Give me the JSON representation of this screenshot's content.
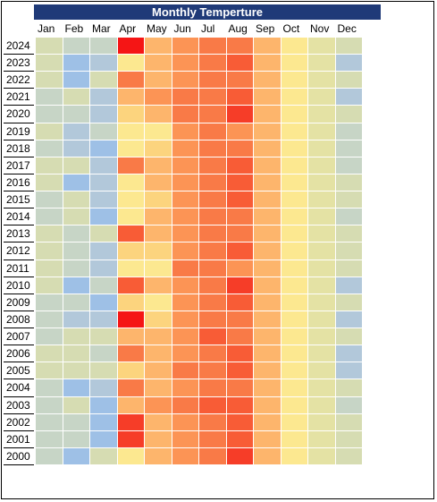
{
  "sheet": {
    "title": "Monthly Temperture",
    "months": [
      "Jan",
      "Feb",
      "Mar",
      "Apr",
      "May",
      "Jun",
      "Jul",
      "Aug",
      "Sep",
      "Oct",
      "Nov",
      "Dec"
    ],
    "years": [
      "2024",
      "2023",
      "2022",
      "2021",
      "2020",
      "2019",
      "2018",
      "2017",
      "2016",
      "2015",
      "2014",
      "2013",
      "2012",
      "2011",
      "2010",
      "2009",
      "2008",
      "2007",
      "2006",
      "2005",
      "2004",
      "2003",
      "2002",
      "2001",
      "2000"
    ],
    "colors": {
      "title_bg": "#1f3a78",
      "scale": [
        "#9ec0e6",
        "#b2c8da",
        "#c7d5c6",
        "#d6dcb2",
        "#e4e2a4",
        "#fce890",
        "#fcd47e",
        "#fdb56c",
        "#fc9455",
        "#f97a47",
        "#f85c36",
        "#f63d28",
        "#f51515"
      ]
    },
    "matrix": [
      [
        3,
        2,
        2,
        12,
        7,
        8,
        9,
        9,
        7,
        5,
        4,
        3
      ],
      [
        3,
        0,
        1,
        5,
        7,
        8,
        9,
        10,
        7,
        5,
        4,
        1
      ],
      [
        3,
        0,
        3,
        9,
        7,
        8,
        9,
        9,
        7,
        5,
        4,
        3
      ],
      [
        2,
        3,
        1,
        7,
        8,
        9,
        9,
        10,
        7,
        5,
        4,
        1
      ],
      [
        2,
        2,
        1,
        6,
        7,
        9,
        9,
        11,
        7,
        5,
        4,
        3
      ],
      [
        3,
        1,
        2,
        5,
        5,
        8,
        9,
        8,
        7,
        5,
        4,
        2
      ],
      [
        2,
        1,
        0,
        5,
        6,
        8,
        9,
        9,
        7,
        5,
        4,
        2
      ],
      [
        3,
        3,
        1,
        9,
        7,
        8,
        9,
        10,
        7,
        5,
        4,
        2
      ],
      [
        3,
        0,
        1,
        5,
        7,
        8,
        9,
        10,
        7,
        5,
        4,
        3
      ],
      [
        2,
        3,
        1,
        5,
        6,
        8,
        9,
        10,
        7,
        5,
        4,
        3
      ],
      [
        2,
        3,
        0,
        5,
        7,
        8,
        9,
        9,
        7,
        5,
        4,
        2
      ],
      [
        3,
        2,
        3,
        10,
        7,
        8,
        9,
        9,
        7,
        5,
        4,
        3
      ],
      [
        3,
        2,
        1,
        6,
        6,
        8,
        9,
        10,
        7,
        5,
        4,
        3
      ],
      [
        3,
        2,
        1,
        5,
        5,
        9,
        9,
        8,
        7,
        5,
        4,
        3
      ],
      [
        3,
        0,
        2,
        10,
        7,
        8,
        9,
        11,
        7,
        5,
        4,
        1
      ],
      [
        2,
        2,
        0,
        6,
        5,
        8,
        9,
        10,
        7,
        5,
        4,
        3
      ],
      [
        2,
        1,
        1,
        12,
        6,
        8,
        9,
        9,
        7,
        5,
        4,
        1
      ],
      [
        2,
        3,
        3,
        7,
        7,
        8,
        10,
        9,
        7,
        5,
        4,
        3
      ],
      [
        3,
        3,
        2,
        9,
        7,
        8,
        9,
        10,
        7,
        5,
        4,
        1
      ],
      [
        3,
        3,
        3,
        6,
        7,
        9,
        9,
        10,
        7,
        5,
        4,
        1
      ],
      [
        2,
        0,
        1,
        9,
        7,
        8,
        9,
        9,
        7,
        5,
        4,
        3
      ],
      [
        2,
        3,
        0,
        7,
        8,
        9,
        10,
        10,
        7,
        5,
        4,
        2
      ],
      [
        2,
        2,
        0,
        11,
        7,
        8,
        9,
        10,
        7,
        5,
        4,
        3
      ],
      [
        2,
        2,
        0,
        11,
        7,
        8,
        9,
        10,
        7,
        5,
        4,
        3
      ],
      [
        2,
        0,
        3,
        5,
        7,
        8,
        9,
        11,
        7,
        5,
        4,
        3
      ]
    ]
  }
}
